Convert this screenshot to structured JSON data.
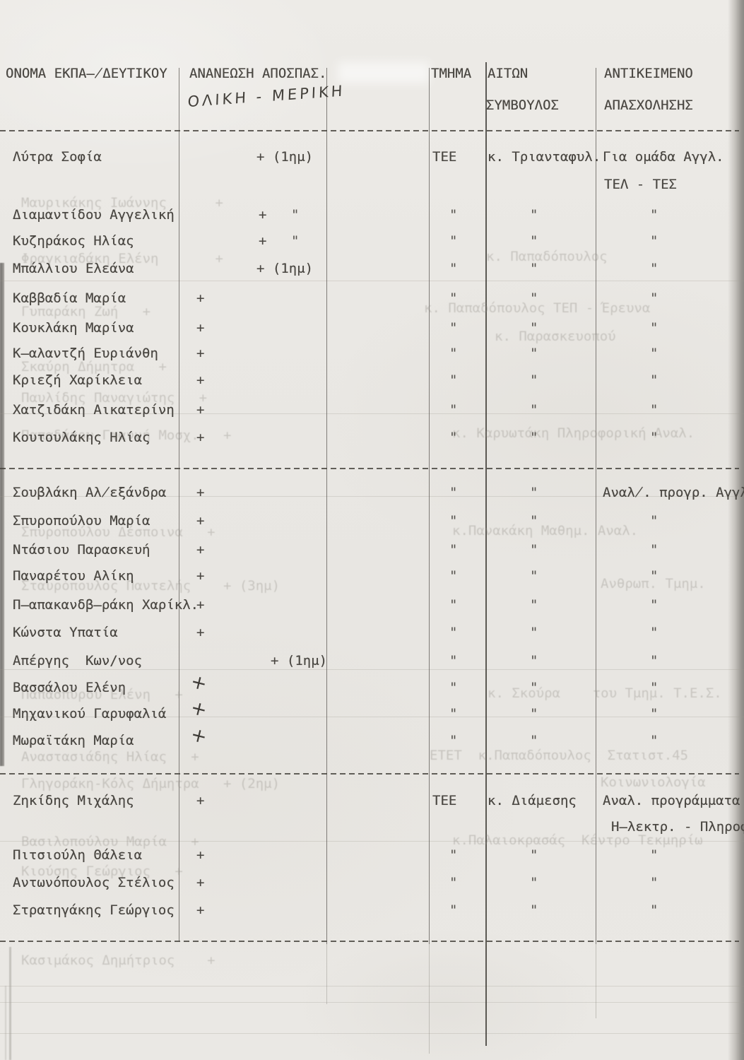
{
  "document": {
    "ditto_mark": "\"",
    "header": {
      "col_name": "ΟΝΟΜΑ ΕΚΠΑ̶̸ΔΕΥΤΙΚΟΥ",
      "col_renewal": "ΑΝΑΝΕΩΣΗ ΑΠΟΣΠΑΣ.",
      "col_renewal_handwritten": "ΟΛΙΚΗ - ΜΕΡΙΚΗ",
      "col_department": "ΤΜΗΜΑ",
      "col_applicant_line1": "ΑΙΤΩΝ",
      "col_applicant_line2": "ΣΥΜΒΟΥΛΟΣ",
      "col_subject_line1": "ΑΝΤΙΚΕΙΜΕΝΟ",
      "col_subject_line2": "ΑΠΑΣΧΟΛΗΣΗΣ"
    },
    "rows": [
      {
        "name": "Λύτρα Σοφία",
        "ren": "+ (1ημ)",
        "ren_kind": "paren",
        "tmima": "ΤΕΕ",
        "aitwn": "κ. Τριανταφυλ.",
        "antik": "Για ομάδα Αγγλ.",
        "extra": "ΤΕΛ - ΤΕΣ"
      },
      {
        "name": "Διαμαντίδου Αγγελική",
        "ren": "+",
        "ren_kind": "ditto",
        "tmima": "\"",
        "aitwn": "\"",
        "antik": "\""
      },
      {
        "name": "Κυζηράκος Ηλίας",
        "ren": "+",
        "ren_kind": "ditto",
        "tmima": "\"",
        "aitwn": "\"",
        "antik": "\""
      },
      {
        "name": "Μπάλλιου Ελεάνα",
        "ren": "+ (1ημ)",
        "ren_kind": "paren",
        "tmima": "\"",
        "aitwn": "\"",
        "antik": "\""
      },
      {
        "name": "Καββαδία Μαρία",
        "ren": "+",
        "ren_kind": "plain",
        "tmima": "\"",
        "aitwn": "\"",
        "antik": "\""
      },
      {
        "name": "Κουκλάκη Μαρίνα",
        "ren": "+",
        "ren_kind": "plain",
        "tmima": "\"",
        "aitwn": "\"",
        "antik": "\""
      },
      {
        "name": "Κ̶αλαντζή Ευριάνθη",
        "ren": "+",
        "ren_kind": "plain",
        "tmima": "\"",
        "aitwn": "\"",
        "antik": "\""
      },
      {
        "name": "Κριεζή Χαρίκλεια",
        "ren": "+",
        "ren_kind": "plain",
        "tmima": "\"",
        "aitwn": "\"",
        "antik": "\""
      },
      {
        "name": "Χατζιδάκη Αικατερίνη",
        "ren": "+",
        "ren_kind": "plain",
        "tmima": "\"",
        "aitwn": "\"",
        "antik": "\""
      },
      {
        "name": "Κουτουλάκης Ηλίας",
        "ren": "+",
        "ren_kind": "plain",
        "tmima": "\"",
        "aitwn": "\"",
        "antik": "\""
      },
      {
        "name": "Σουβλάκη Αλ̸εξάνδρα",
        "ren": "+",
        "ren_kind": "plain",
        "tmima": "\"",
        "aitwn": "\"",
        "antik": "Αναλ̸. προγρ. Αγγλ"
      },
      {
        "name": "Σπυροπούλου Μαρία",
        "ren": "+",
        "ren_kind": "plain",
        "tmima": "\"",
        "aitwn": "\"",
        "antik": "\""
      },
      {
        "name": "Ντάσιου Παρασκευή",
        "ren": "+",
        "ren_kind": "plain",
        "tmima": "\"",
        "aitwn": "\"",
        "antik": "\""
      },
      {
        "name": "Παναρέτου Αλίκη",
        "ren": "+",
        "ren_kind": "plain",
        "tmima": "\"",
        "aitwn": "\"",
        "antik": "\""
      },
      {
        "name": "Π̶απακανδβ̶ράκη Χαρίκλ.",
        "ren": "+",
        "ren_kind": "plain",
        "tmima": "\"",
        "aitwn": "\"",
        "antik": "\""
      },
      {
        "name": "Κώνστα Υπατία",
        "ren": "+",
        "ren_kind": "plain",
        "tmima": "\"",
        "aitwn": "\"",
        "antik": "\""
      },
      {
        "name": "Απέργης  Κων/νος",
        "ren": "+ (1ημ)",
        "ren_kind": "paren",
        "tmima": "\"",
        "aitwn": "\"",
        "antik": "\""
      },
      {
        "name": "Βασσάλου Ελένη",
        "ren": "+",
        "ren_kind": "hw",
        "tmima": "\"",
        "aitwn": "\"",
        "antik": "\""
      },
      {
        "name": "Μηχανικού Γαρυφαλιά",
        "ren": "+",
        "ren_kind": "hw",
        "tmima": "\"",
        "aitwn": "\"",
        "antik": "\""
      },
      {
        "name": "Μωραϊτάκη Μαρία",
        "ren": "+",
        "ren_kind": "hw",
        "tmima": "\"",
        "aitwn": "\"",
        "antik": "\""
      },
      {
        "name": "Ζηκίδης Μιχάλης",
        "ren": "+",
        "ren_kind": "plain",
        "tmima": "ΤΕΕ",
        "aitwn": "κ. Διάμεσης",
        "antik": "Αναλ. προγράμματα",
        "extra": "Η̶λεκτρ. - Πληροφ"
      },
      {
        "name": "Πιτσιούλη Θάλεια",
        "ren": "+",
        "ren_kind": "plain",
        "tmima": "\"",
        "aitwn": "\"",
        "antik": "\""
      },
      {
        "name": "Αντωνόπουλος Στέλιος",
        "ren": "+",
        "ren_kind": "plain",
        "tmima": "\"",
        "aitwn": "\"",
        "antik": "\""
      },
      {
        "name": "Στρατηγάκης Γεώργιος",
        "ren": "+",
        "ren_kind": "plain",
        "tmima": "\"",
        "aitwn": "\"",
        "antik": "\""
      }
    ],
    "bleedthrough": [
      {
        "text": "Μαυρικάκης Ιωάννης      +"
      },
      {
        "text": "Φραγκιαδάκη Ελένη       +"
      },
      {
        "text": "κ. Παπαδόπουλος"
      },
      {
        "text": "Γυπαράκη Ζωή   +"
      },
      {
        "text": "κ. Παπαδόπουλος ΤΕΠ - Έρευνα"
      },
      {
        "text": "κ. Παρασκευοπού"
      },
      {
        "text": "Σκαύρη Δήμητρα   +"
      },
      {
        "text": "Παυλίδης Παναγιώτης   +"
      },
      {
        "text": "Παπαδάκου-Γιαννή Μοσχ.   +"
      },
      {
        "text": "κ. Καρυωτάκη Πληροφορική Αναλ."
      },
      {
        "text": "Σπυροπούλου Δέσποινα   +"
      },
      {
        "text": "κ.Πανακάκη Μαθημ. Αναλ."
      },
      {
        "text": "Σταυρόπουλος Παντελής    + (3ημ)"
      },
      {
        "text": "Ανθρωπ. Τμημ."
      },
      {
        "text": "Παπασπύρου Ελένη   +"
      },
      {
        "text": "κ. Σκούρα    του Τμημ. Τ.Ε.Σ."
      },
      {
        "text": "Αναστασιάδης Ηλίας   +"
      },
      {
        "text": "ΕΤΕΤ  κ.Παπαδόπουλος  Στατιστ.45"
      },
      {
        "text": "Γληγοράκη-Κόλς Δήμητρα   + (2ημ)"
      },
      {
        "text": "Κοινωνιολογία"
      },
      {
        "text": "Βασιλοπούλου Μαρία   +"
      },
      {
        "text": "κ.Παλαιοκρασάς  Κέντρο Τεκμηρίω"
      },
      {
        "text": "Κιούσης Γεώργιος   +"
      },
      {
        "text": "Κασιμάκος Δημήτριος    +"
      }
    ]
  }
}
